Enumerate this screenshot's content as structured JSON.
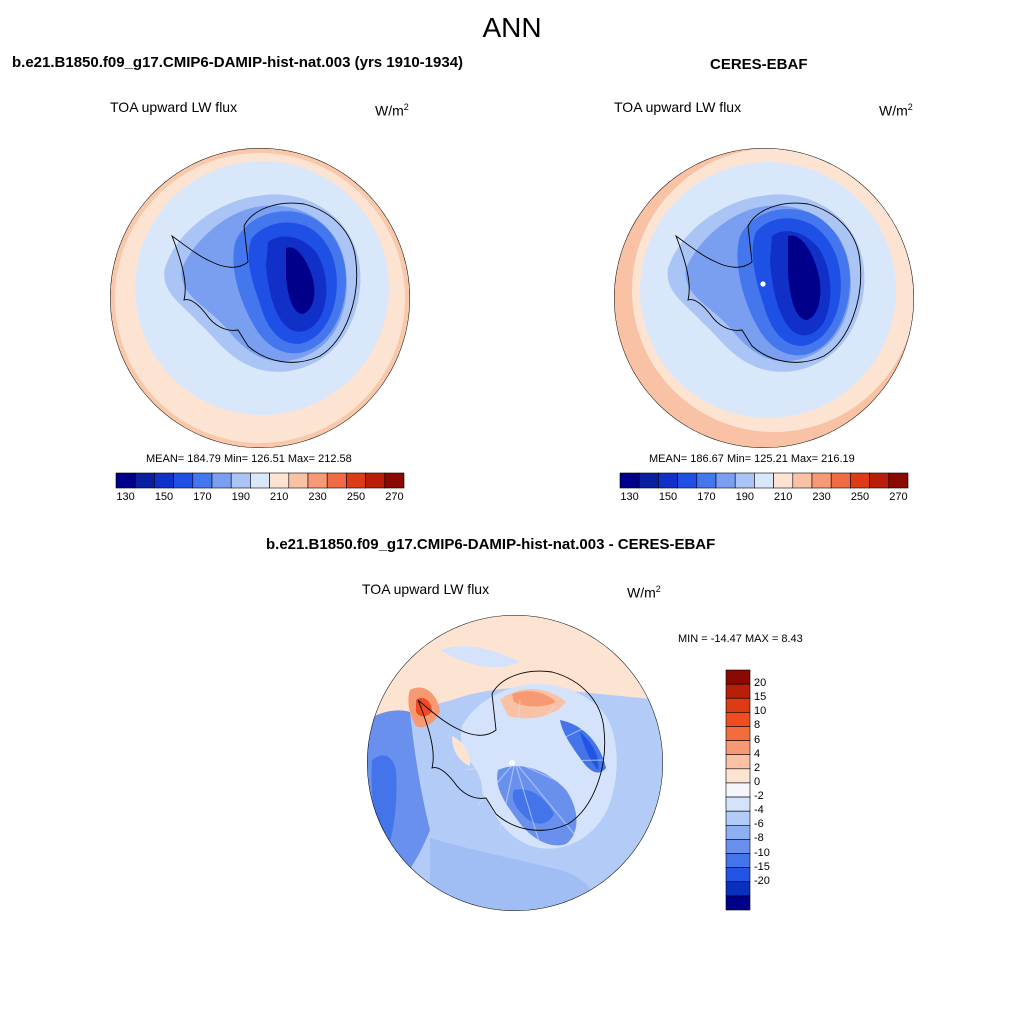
{
  "title": "ANN",
  "panels": [
    {
      "title": "b.e21.B1850.f09_g17.CMIP6-DAMIP-hist-nat.003 (yrs 1910-1934)",
      "variable": "TOA upward LW flux",
      "units_base": "W/m",
      "units_exp": "2",
      "stats": "MEAN= 184.79  Min= 126.51  Max= 212.58"
    },
    {
      "title": "CERES-EBAF",
      "variable": "TOA upward LW flux",
      "units_base": "W/m",
      "units_exp": "2",
      "stats": "MEAN= 186.67  Min= 125.21  Max= 216.19"
    },
    {
      "title": "b.e21.B1850.f09_g17.CMIP6-DAMIP-hist-nat.003 - CERES-EBAF",
      "variable": "TOA upward LW flux",
      "units_base": "W/m",
      "units_exp": "2",
      "stats": "MIN = -14.47 MAX =   8.43"
    }
  ],
  "colorbar_top": {
    "colors": [
      "#00008a",
      "#0a1fa0",
      "#1030c8",
      "#1e50e6",
      "#4477ee",
      "#7b9ff0",
      "#a9c4f5",
      "#d9e7fa",
      "#fde4d2",
      "#f9c2a4",
      "#f79a74",
      "#f06a44",
      "#dd3a16",
      "#b81e08",
      "#8a0a02"
    ],
    "tick_labels": [
      "130",
      "150",
      "170",
      "190",
      "210",
      "230",
      "250",
      "270"
    ]
  },
  "colorbar_diff": {
    "colors": [
      "#8a0a02",
      "#b81e08",
      "#dd3a16",
      "#f04c20",
      "#f46b3d",
      "#f79a74",
      "#f9c2a4",
      "#fde4d2",
      "#f4f6fb",
      "#d4e3fb",
      "#b2cbf7",
      "#8eaff2",
      "#6a90ee",
      "#4374ea",
      "#2254e4",
      "#0a30c0",
      "#00008a"
    ],
    "tick_labels": [
      "20",
      "15",
      "10",
      "8",
      "6",
      "4",
      "2",
      "0",
      "-2",
      "-4",
      "-6",
      "-8",
      "-10",
      "-15",
      "-20"
    ]
  }
}
